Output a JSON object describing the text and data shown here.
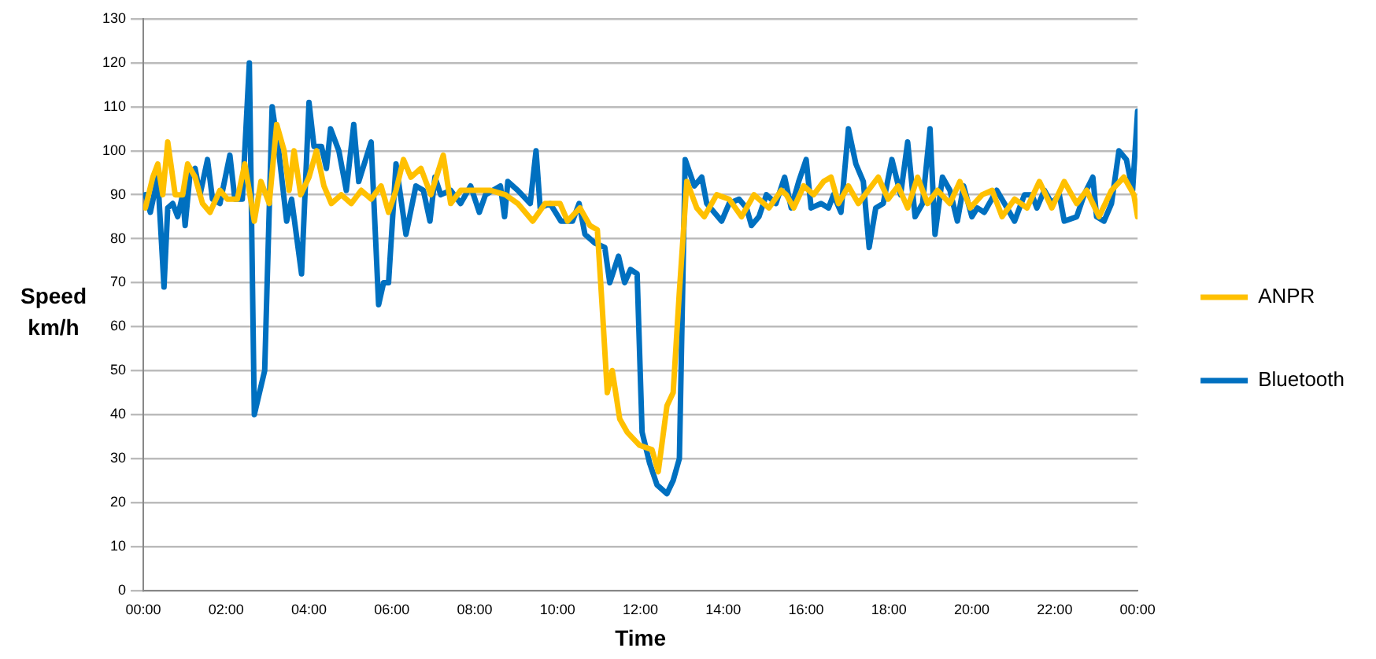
{
  "chart_data": {
    "type": "line",
    "xlabel": "Time",
    "ylabel": "Speed km/h",
    "xlim": [
      0,
      24
    ],
    "xticks": [
      {
        "value": 0,
        "label": "00:00"
      },
      {
        "value": 2,
        "label": "02:00"
      },
      {
        "value": 4,
        "label": "04:00"
      },
      {
        "value": 6,
        "label": "06:00"
      },
      {
        "value": 8,
        "label": "08:00"
      },
      {
        "value": 10,
        "label": "10:00"
      },
      {
        "value": 12,
        "label": "12:00"
      },
      {
        "value": 14,
        "label": "14:00"
      },
      {
        "value": 16,
        "label": "16:00"
      },
      {
        "value": 18,
        "label": "18:00"
      },
      {
        "value": 20,
        "label": "20:00"
      },
      {
        "value": 22,
        "label": "22:00"
      },
      {
        "value": 24,
        "label": "00:00"
      }
    ],
    "ylim": [
      0,
      130
    ],
    "yticks": [
      0,
      10,
      20,
      30,
      40,
      50,
      60,
      70,
      80,
      90,
      100,
      110,
      120,
      130
    ],
    "grid": "y",
    "legend": "right",
    "marker": "none",
    "line_style": "solid",
    "series": [
      {
        "name": "ANPR",
        "color": "#ffc000",
        "x": [
          0.05,
          0.23,
          0.35,
          0.47,
          0.59,
          0.77,
          0.95,
          1.07,
          1.25,
          1.43,
          1.61,
          1.85,
          2.03,
          2.27,
          2.45,
          2.68,
          2.84,
          3.04,
          3.22,
          3.4,
          3.52,
          3.64,
          3.8,
          4.0,
          4.18,
          4.36,
          4.54,
          4.78,
          5.02,
          5.26,
          5.5,
          5.74,
          5.92,
          6.1,
          6.28,
          6.46,
          6.7,
          6.94,
          7.24,
          7.42,
          7.66,
          8.02,
          8.38,
          8.74,
          9.04,
          9.4,
          9.7,
          10.06,
          10.24,
          10.54,
          10.78,
          10.96,
          11.08,
          11.2,
          11.32,
          11.5,
          11.68,
          11.98,
          12.28,
          12.43,
          12.64,
          12.79,
          12.94,
          13.12,
          13.36,
          13.54,
          13.84,
          14.14,
          14.44,
          14.74,
          15.1,
          15.4,
          15.52,
          15.7,
          15.94,
          16.18,
          16.42,
          16.6,
          16.78,
          17.02,
          17.26,
          17.5,
          17.74,
          17.98,
          18.22,
          18.45,
          18.69,
          18.93,
          19.17,
          19.47,
          19.71,
          19.96,
          20.25,
          20.49,
          20.73,
          21.03,
          21.33,
          21.63,
          21.93,
          22.23,
          22.53,
          22.77,
          23.07,
          23.37,
          23.67,
          23.91,
          24.0
        ],
        "values": [
          87,
          94,
          97,
          90,
          102,
          90,
          90,
          97,
          94,
          88,
          86,
          91,
          89,
          89,
          97,
          84,
          93,
          88,
          106,
          100,
          91,
          100,
          90,
          94,
          100,
          92,
          88,
          90,
          88,
          91,
          89,
          92,
          86,
          91,
          98,
          94,
          96,
          90,
          99,
          88,
          91,
          91,
          91,
          90,
          88,
          84,
          88,
          88,
          84,
          87,
          83,
          82,
          64,
          45,
          50,
          39,
          36,
          33,
          32,
          27,
          42,
          45,
          68,
          93,
          87,
          85,
          90,
          89,
          85,
          90,
          87,
          91,
          90,
          87,
          92,
          90,
          93,
          94,
          88,
          92,
          88,
          91,
          94,
          89,
          92,
          87,
          94,
          88,
          91,
          88,
          93,
          87,
          90,
          91,
          85,
          89,
          87,
          93,
          87,
          93,
          88,
          91,
          85,
          91,
          94,
          90,
          85
        ]
      },
      {
        "name": "Bluetooth",
        "color": "#0070c0",
        "x": [
          0.05,
          0.17,
          0.35,
          0.5,
          0.59,
          0.71,
          0.83,
          0.95,
          1.01,
          1.13,
          1.25,
          1.37,
          1.55,
          1.67,
          1.85,
          2.09,
          2.21,
          2.39,
          2.56,
          2.68,
          2.93,
          3.11,
          3.28,
          3.46,
          3.58,
          3.82,
          4.0,
          4.12,
          4.3,
          4.42,
          4.52,
          4.72,
          4.9,
          5.08,
          5.2,
          5.5,
          5.68,
          5.8,
          5.92,
          6.1,
          6.34,
          6.58,
          6.76,
          6.92,
          7.04,
          7.18,
          7.42,
          7.66,
          7.9,
          8.11,
          8.26,
          8.44,
          8.62,
          8.72,
          8.8,
          9.04,
          9.34,
          9.48,
          9.58,
          9.82,
          10.08,
          10.36,
          10.52,
          10.66,
          10.9,
          11.14,
          11.26,
          11.47,
          11.62,
          11.76,
          11.92,
          12.04,
          12.22,
          12.4,
          12.64,
          12.79,
          12.94,
          13.08,
          13.3,
          13.48,
          13.6,
          13.78,
          13.96,
          14.14,
          14.38,
          14.56,
          14.68,
          14.86,
          15.04,
          15.27,
          15.48,
          15.64,
          15.82,
          16.0,
          16.12,
          16.36,
          16.54,
          16.66,
          16.84,
          17.02,
          17.2,
          17.38,
          17.52,
          17.68,
          17.86,
          18.07,
          18.28,
          18.45,
          18.63,
          18.81,
          18.99,
          19.11,
          19.29,
          19.47,
          19.65,
          19.8,
          20.0,
          20.13,
          20.3,
          20.6,
          20.85,
          21.03,
          21.27,
          21.45,
          21.57,
          21.75,
          21.93,
          22.11,
          22.23,
          22.53,
          22.71,
          22.92,
          23.01,
          23.19,
          23.37,
          23.55,
          23.73,
          23.88,
          24.0
        ],
        "values": [
          90,
          86,
          94,
          69,
          87,
          88,
          85,
          90,
          83,
          95,
          96,
          90,
          98,
          89,
          88,
          99,
          89,
          89,
          120,
          40,
          50,
          110,
          99,
          84,
          89,
          72,
          111,
          101,
          101,
          96,
          105,
          100,
          91,
          106,
          93,
          102,
          65,
          70,
          70,
          97,
          81,
          92,
          91,
          84,
          94,
          90,
          91,
          88,
          92,
          86,
          90,
          91,
          92,
          85,
          93,
          91,
          88,
          100,
          87,
          88,
          84,
          84,
          88,
          81,
          79,
          78,
          70,
          76,
          70,
          73,
          72,
          36,
          29,
          24,
          22,
          25,
          30,
          98,
          92,
          94,
          88,
          86,
          84,
          88,
          89,
          87,
          83,
          85,
          90,
          88,
          94,
          87,
          93,
          98,
          87,
          88,
          87,
          90,
          86,
          105,
          97,
          93,
          78,
          87,
          88,
          98,
          90,
          102,
          85,
          88,
          105,
          81,
          94,
          91,
          84,
          92,
          85,
          87,
          86,
          91,
          87,
          84,
          90,
          90,
          87,
          91,
          88,
          90,
          84,
          85,
          90,
          94,
          85,
          84,
          88,
          100,
          98,
          91,
          109
        ]
      }
    ]
  }
}
